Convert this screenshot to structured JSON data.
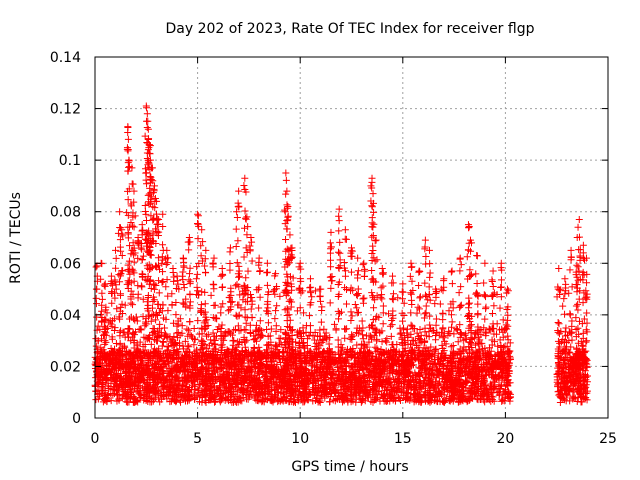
{
  "chart_data": {
    "type": "scatter",
    "title": "Day 202 of 2023, Rate Of TEC Index for receiver flgp",
    "xlabel": "GPS time / hours",
    "ylabel": "ROTI / TECUs",
    "xlim": [
      0,
      25
    ],
    "ylim": [
      0,
      0.14
    ],
    "xticks": [
      0,
      5,
      10,
      15,
      20,
      25
    ],
    "yticks": [
      0,
      0.02,
      0.04,
      0.06,
      0.08,
      0.1,
      0.12,
      0.14
    ],
    "xtick_labels": [
      "0",
      "5",
      "10",
      "15",
      "20",
      "25"
    ],
    "ytick_labels": [
      "0",
      "0.02",
      "0.04",
      "0.06",
      "0.08",
      "0.1",
      "0.12",
      "0.14"
    ],
    "grid": true,
    "marker": "+",
    "color": "#ff0000",
    "data_gap_hours": [
      20.2,
      22.5
    ],
    "series": [
      {
        "values_note": "dense ROTI samples, estimated peaks",
        "points": [
          [
            0.1,
            0.059
          ],
          [
            0.3,
            0.06
          ],
          [
            0.5,
            0.052
          ],
          [
            0.8,
            0.055
          ],
          [
            1.0,
            0.065
          ],
          [
            1.2,
            0.08
          ],
          [
            1.3,
            0.073
          ],
          [
            1.6,
            0.113
          ],
          [
            1.65,
            0.1
          ],
          [
            1.8,
            0.097
          ],
          [
            1.9,
            0.088
          ],
          [
            2.1,
            0.07
          ],
          [
            2.3,
            0.075
          ],
          [
            2.5,
            0.121
          ],
          [
            2.55,
            0.118
          ],
          [
            2.6,
            0.112
          ],
          [
            2.65,
            0.106
          ],
          [
            2.7,
            0.1
          ],
          [
            2.8,
            0.097
          ],
          [
            2.9,
            0.09
          ],
          [
            3.0,
            0.084
          ],
          [
            3.1,
            0.077
          ],
          [
            3.3,
            0.079
          ],
          [
            3.5,
            0.065
          ],
          [
            3.8,
            0.058
          ],
          [
            4.0,
            0.055
          ],
          [
            4.3,
            0.062
          ],
          [
            4.6,
            0.07
          ],
          [
            5.0,
            0.079
          ],
          [
            5.2,
            0.073
          ],
          [
            5.4,
            0.065
          ],
          [
            5.8,
            0.062
          ],
          [
            6.2,
            0.058
          ],
          [
            6.6,
            0.066
          ],
          [
            6.9,
            0.08
          ],
          [
            7.0,
            0.088
          ],
          [
            7.3,
            0.093
          ],
          [
            7.4,
            0.078
          ],
          [
            7.6,
            0.07
          ],
          [
            8.0,
            0.062
          ],
          [
            8.4,
            0.06
          ],
          [
            8.8,
            0.056
          ],
          [
            9.3,
            0.095
          ],
          [
            9.35,
            0.088
          ],
          [
            9.4,
            0.082
          ],
          [
            9.5,
            0.071
          ],
          [
            9.6,
            0.066
          ],
          [
            10.0,
            0.06
          ],
          [
            10.5,
            0.054
          ],
          [
            11.0,
            0.05
          ],
          [
            11.5,
            0.072
          ],
          [
            11.9,
            0.081
          ],
          [
            12.2,
            0.073
          ],
          [
            12.5,
            0.066
          ],
          [
            12.8,
            0.062
          ],
          [
            13.1,
            0.06
          ],
          [
            13.5,
            0.093
          ],
          [
            13.55,
            0.087
          ],
          [
            13.7,
            0.069
          ],
          [
            14.0,
            0.058
          ],
          [
            14.5,
            0.055
          ],
          [
            15.0,
            0.052
          ],
          [
            15.4,
            0.06
          ],
          [
            15.8,
            0.057
          ],
          [
            16.1,
            0.069
          ],
          [
            16.3,
            0.065
          ],
          [
            16.6,
            0.05
          ],
          [
            17.0,
            0.054
          ],
          [
            17.4,
            0.057
          ],
          [
            17.8,
            0.062
          ],
          [
            18.2,
            0.075
          ],
          [
            18.3,
            0.069
          ],
          [
            18.6,
            0.063
          ],
          [
            19.0,
            0.06
          ],
          [
            19.4,
            0.057
          ],
          [
            19.8,
            0.06
          ],
          [
            20.1,
            0.05
          ],
          [
            22.6,
            0.058
          ],
          [
            22.9,
            0.054
          ],
          [
            23.2,
            0.065
          ],
          [
            23.5,
            0.07
          ],
          [
            23.6,
            0.077
          ],
          [
            23.8,
            0.067
          ],
          [
            23.95,
            0.062
          ]
        ]
      }
    ]
  }
}
